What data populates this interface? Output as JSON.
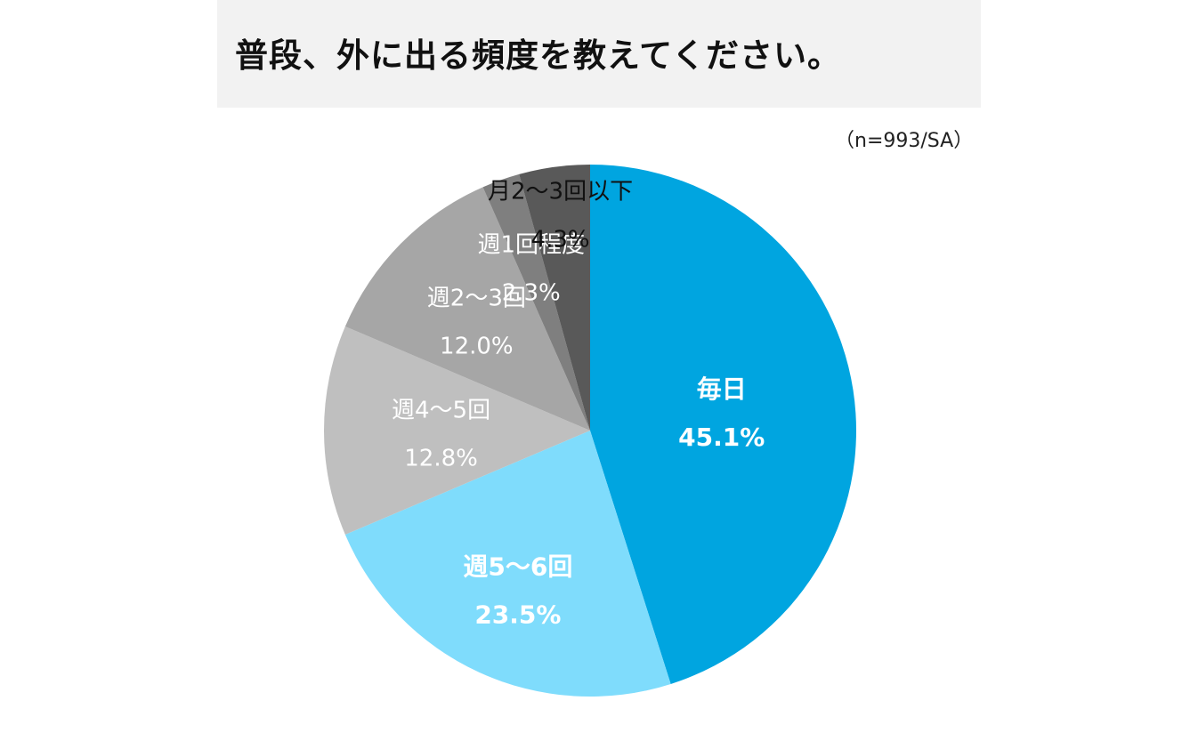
{
  "title": "普段、外に出る頻度を教えてください。",
  "note": "（n=993/SA）",
  "chart_data": {
    "type": "pie",
    "title": "普段、外に出る頻度を教えてください。",
    "start_angle_deg": 0,
    "direction": "clockwise",
    "unit": "%",
    "slices": [
      {
        "label": "毎日",
        "value": 45.1,
        "display": "45.1%",
        "color": "#00a5e0",
        "text_color": "#ffffff",
        "bold": true
      },
      {
        "label": "週5〜6回",
        "value": 23.5,
        "display": "23.5%",
        "color": "#7fdcfc",
        "text_color": "#ffffff",
        "bold": true
      },
      {
        "label": "週4〜5回",
        "value": 12.8,
        "display": "12.8%",
        "color": "#bfbfbf",
        "text_color": "#ffffff",
        "bold": false
      },
      {
        "label": "週2〜3回",
        "value": 12.0,
        "display": "12.0%",
        "color": "#a6a6a6",
        "text_color": "#ffffff",
        "bold": false
      },
      {
        "label": "週1回程度",
        "value": 2.3,
        "display": "2.3%",
        "color": "#7f7f7f",
        "text_color": "#ffffff",
        "bold": false
      },
      {
        "label": "月2〜3回以下",
        "value": 4.3,
        "display": "4.3%",
        "color": "#595959",
        "text_color": "#111111",
        "bold": false
      }
    ],
    "legend": "none"
  }
}
